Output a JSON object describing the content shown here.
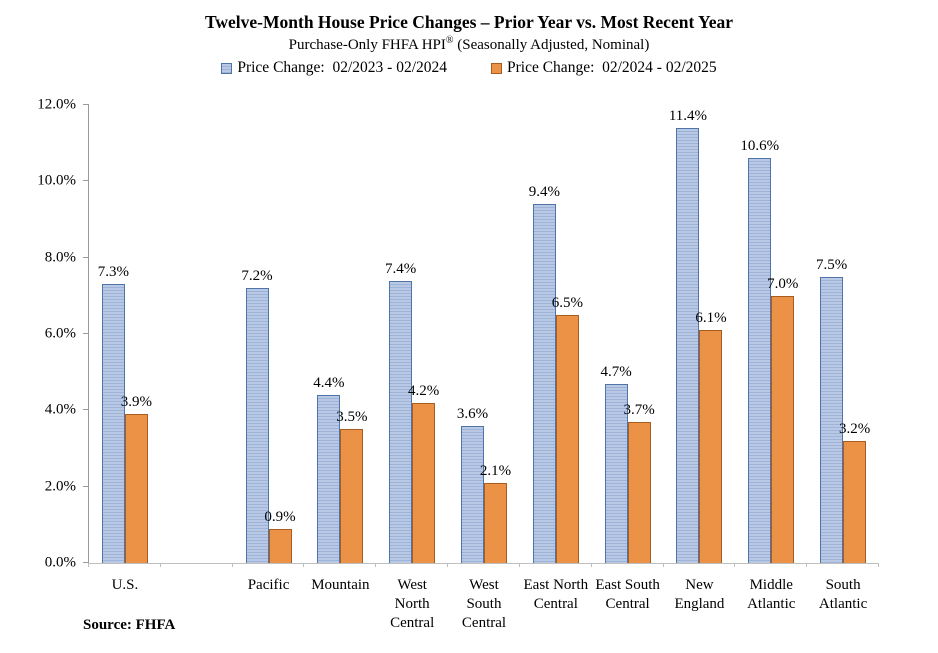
{
  "chart_data": {
    "type": "bar",
    "title": "Twelve-Month House Price Changes – Prior Year vs. Most Recent Year",
    "subtitle_prefix": "Purchase-Only FHFA HPI",
    "subtitle_sup": "®",
    "subtitle_suffix": " (Seasonally Adjusted, Nominal)",
    "source": "Source: FHFA",
    "categories": [
      "U.S.",
      "Pacific",
      "Mountain",
      "West North Central",
      "West South Central",
      "East North Central",
      "East South Central",
      "New England",
      "Middle Atlantic",
      "South Atlantic"
    ],
    "category_label_lines": [
      [
        "U.S."
      ],
      [
        "Pacific"
      ],
      [
        "Mountain"
      ],
      [
        "West",
        "North",
        "Central"
      ],
      [
        "West",
        "South",
        "Central"
      ],
      [
        "East North",
        "Central"
      ],
      [
        "East South",
        "Central"
      ],
      [
        "New",
        "England"
      ],
      [
        "Middle",
        "Atlantic"
      ],
      [
        "South",
        "Atlantic"
      ]
    ],
    "gap_after_index": 0,
    "series": [
      {
        "name": "Price Change:  02/2023 - 02/2024",
        "color_key": "prior",
        "values": [
          7.3,
          7.2,
          4.4,
          7.4,
          3.6,
          9.4,
          4.7,
          11.4,
          10.6,
          7.5
        ]
      },
      {
        "name": "Price Change:  02/2024 - 02/2025",
        "color_key": "recent",
        "values": [
          3.9,
          0.9,
          3.5,
          4.2,
          2.1,
          6.5,
          3.7,
          6.1,
          7.0,
          3.2
        ]
      }
    ],
    "ylim": [
      0,
      12
    ],
    "ytick_step": 2,
    "ytick_suffix": "%",
    "grid": false,
    "legend_position": "top",
    "colors": {
      "prior_fill": "#b9c9e5",
      "prior_stripe": "#9db3d8",
      "prior_border": "#4e74a8",
      "recent_fill": "#ec9246",
      "recent_border": "#a85d20",
      "axis_line": "#9b9b9b",
      "baseline": "#bfbfbf",
      "text": "#000000"
    }
  }
}
